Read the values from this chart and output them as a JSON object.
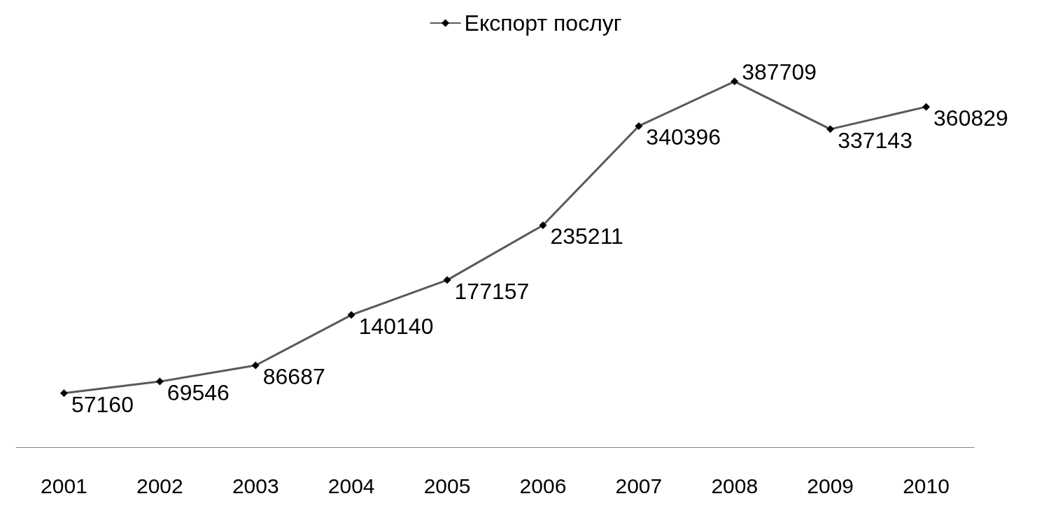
{
  "chart_data": {
    "type": "line",
    "categories": [
      "2001",
      "2002",
      "2003",
      "2004",
      "2005",
      "2006",
      "2007",
      "2008",
      "2009",
      "2010"
    ],
    "series": [
      {
        "name": "Експорт послуг",
        "color": "#595959",
        "values": [
          57160,
          69546,
          86687,
          140140,
          177157,
          235211,
          340396,
          387709,
          337143,
          360829
        ]
      }
    ],
    "data_labels": true,
    "marker": "diamond",
    "legend": "top",
    "grid": false,
    "tick_labels": "x"
  }
}
